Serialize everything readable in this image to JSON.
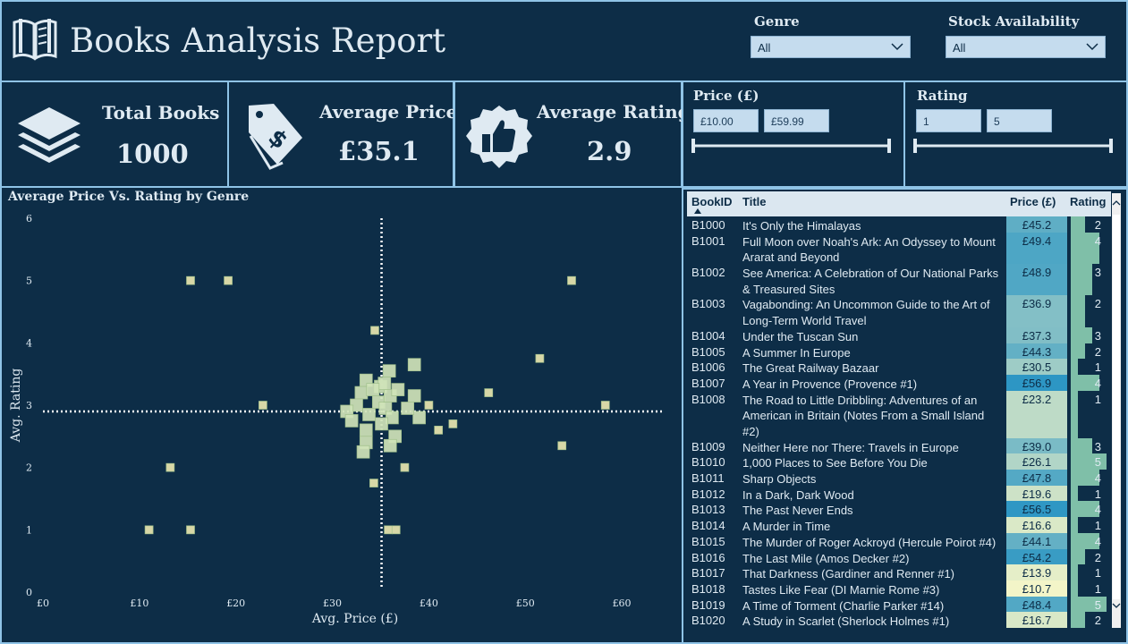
{
  "header": {
    "title": "Books Analysis Report"
  },
  "filters": {
    "genre": {
      "label": "Genre",
      "value": "All"
    },
    "stock": {
      "label": "Stock Availability",
      "value": "All"
    }
  },
  "kpis": {
    "total_books": {
      "label": "Total Books",
      "value": "1000"
    },
    "avg_price": {
      "label": "Average Price",
      "value": "£35.1"
    },
    "avg_rating": {
      "label": "Average Rating",
      "value": "2.9"
    }
  },
  "range_slicers": {
    "price": {
      "label": "Price (£)",
      "min": "£10.00",
      "max": "£59.99"
    },
    "rating": {
      "label": "Rating",
      "min": "1",
      "max": "5"
    }
  },
  "chart_data": {
    "type": "scatter",
    "title": "Average Price Vs. Rating by Genre",
    "xlabel": "Avg. Price (£)",
    "ylabel": "Avg. Rating",
    "xlim": [
      0,
      65
    ],
    "ylim": [
      0,
      6
    ],
    "xticks": [
      "£0",
      "£10",
      "£20",
      "£30",
      "£40",
      "£50",
      "£60"
    ],
    "yticks": [
      "0",
      "1",
      "2",
      "3",
      "4",
      "5",
      "6"
    ],
    "reference_lines": {
      "avg_price": 35.1,
      "avg_rating": 2.9
    },
    "points": [
      {
        "x": 15.3,
        "y": 5.0
      },
      {
        "x": 19.2,
        "y": 5.0
      },
      {
        "x": 54.8,
        "y": 5.0
      },
      {
        "x": 11.0,
        "y": 1.0
      },
      {
        "x": 15.3,
        "y": 1.0
      },
      {
        "x": 13.2,
        "y": 2.0
      },
      {
        "x": 22.8,
        "y": 3.0
      },
      {
        "x": 58.3,
        "y": 3.0
      },
      {
        "x": 53.8,
        "y": 2.35
      },
      {
        "x": 51.5,
        "y": 3.75
      },
      {
        "x": 46.2,
        "y": 3.2
      },
      {
        "x": 42.5,
        "y": 2.7
      },
      {
        "x": 41.0,
        "y": 2.6
      },
      {
        "x": 40.0,
        "y": 3.0
      },
      {
        "x": 39.0,
        "y": 2.8
      },
      {
        "x": 38.5,
        "y": 3.15
      },
      {
        "x": 37.8,
        "y": 2.95
      },
      {
        "x": 37.5,
        "y": 2.0
      },
      {
        "x": 36.5,
        "y": 2.5
      },
      {
        "x": 36.0,
        "y": 2.35
      },
      {
        "x": 35.8,
        "y": 1.0
      },
      {
        "x": 36.6,
        "y": 1.0
      },
      {
        "x": 34.3,
        "y": 1.75
      },
      {
        "x": 34.4,
        "y": 4.2
      },
      {
        "x": 38.5,
        "y": 3.65
      },
      {
        "x": 35.9,
        "y": 3.55
      },
      {
        "x": 33.5,
        "y": 3.4
      },
      {
        "x": 33.0,
        "y": 3.2
      },
      {
        "x": 32.5,
        "y": 3.0
      },
      {
        "x": 31.5,
        "y": 2.9
      },
      {
        "x": 32.0,
        "y": 2.75
      },
      {
        "x": 33.8,
        "y": 2.85
      },
      {
        "x": 34.8,
        "y": 3.05
      },
      {
        "x": 35.5,
        "y": 2.95
      },
      {
        "x": 36.2,
        "y": 2.8
      },
      {
        "x": 35.0,
        "y": 3.3
      },
      {
        "x": 36.0,
        "y": 3.15
      },
      {
        "x": 36.8,
        "y": 3.25
      },
      {
        "x": 33.5,
        "y": 2.6
      },
      {
        "x": 33.5,
        "y": 2.4
      },
      {
        "x": 33.2,
        "y": 2.25
      },
      {
        "x": 35.4,
        "y": 3.35
      },
      {
        "x": 34.2,
        "y": 3.25
      },
      {
        "x": 35.1,
        "y": 2.7
      }
    ]
  },
  "table": {
    "columns": {
      "id": "BookID",
      "title": "Title",
      "price": "Price (£)",
      "rating": "Rating"
    },
    "rows": [
      {
        "id": "B1000",
        "title": "It's Only the Himalayas",
        "price": "£45.2",
        "rating": "2"
      },
      {
        "id": "B1001",
        "title": "Full Moon over Noah's Ark: An Odyssey to Mount Ararat and Beyond",
        "price": "£49.4",
        "rating": "4"
      },
      {
        "id": "B1002",
        "title": "See America: A Celebration of Our National Parks & Treasured Sites",
        "price": "£48.9",
        "rating": "3"
      },
      {
        "id": "B1003",
        "title": "Vagabonding: An Uncommon Guide to the Art of Long-Term World Travel",
        "price": "£36.9",
        "rating": "2"
      },
      {
        "id": "B1004",
        "title": "Under the Tuscan Sun",
        "price": "£37.3",
        "rating": "3"
      },
      {
        "id": "B1005",
        "title": "A Summer In Europe",
        "price": "£44.3",
        "rating": "2"
      },
      {
        "id": "B1006",
        "title": "The Great Railway Bazaar",
        "price": "£30.5",
        "rating": "1"
      },
      {
        "id": "B1007",
        "title": "A Year in Provence (Provence #1)",
        "price": "£56.9",
        "rating": "4"
      },
      {
        "id": "B1008",
        "title": "The Road to Little Dribbling: Adventures of an American in Britain (Notes From a Small Island #2)",
        "price": "£23.2",
        "rating": "1"
      },
      {
        "id": "B1009",
        "title": "Neither Here nor There: Travels in Europe",
        "price": "£39.0",
        "rating": "3"
      },
      {
        "id": "B1010",
        "title": "1,000 Places to See Before You Die",
        "price": "£26.1",
        "rating": "5"
      },
      {
        "id": "B1011",
        "title": "Sharp Objects",
        "price": "£47.8",
        "rating": "4"
      },
      {
        "id": "B1012",
        "title": "In a Dark, Dark Wood",
        "price": "£19.6",
        "rating": "1"
      },
      {
        "id": "B1013",
        "title": "The Past Never Ends",
        "price": "£56.5",
        "rating": "4"
      },
      {
        "id": "B1014",
        "title": "A Murder in Time",
        "price": "£16.6",
        "rating": "1"
      },
      {
        "id": "B1015",
        "title": "The Murder of Roger Ackroyd (Hercule Poirot #4)",
        "price": "£44.1",
        "rating": "4"
      },
      {
        "id": "B1016",
        "title": "The Last Mile (Amos Decker #2)",
        "price": "£54.2",
        "rating": "2"
      },
      {
        "id": "B1017",
        "title": "That Darkness (Gardiner and Renner #1)",
        "price": "£13.9",
        "rating": "1"
      },
      {
        "id": "B1018",
        "title": "Tastes Like Fear (DI Marnie Rome #3)",
        "price": "£10.7",
        "rating": "1"
      },
      {
        "id": "B1019",
        "title": "A Time of Torment (Charlie Parker #14)",
        "price": "£48.4",
        "rating": "5"
      },
      {
        "id": "B1020",
        "title": "A Study in Scarlet (Sherlock Holmes #1)",
        "price": "£16.7",
        "rating": "2"
      }
    ]
  },
  "colors": {
    "background": "#0d2d47",
    "border": "#8fc3e6",
    "marker": "#e8e6b0",
    "rating_bar": "#7fbfa8"
  },
  "icons": [
    "book-open-icon",
    "layers-icon",
    "price-tag-icon",
    "thumbs-up-badge-icon",
    "chevron-down-icon",
    "sort-asc-icon",
    "scroll-up-icon",
    "scroll-down-icon"
  ]
}
